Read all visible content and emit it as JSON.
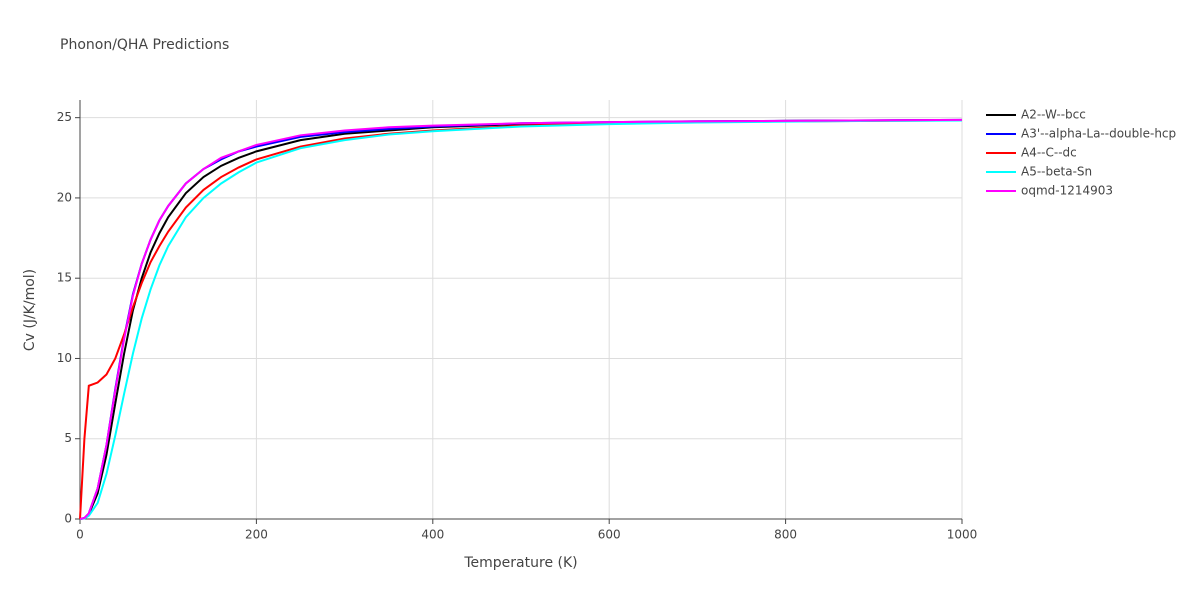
{
  "chart_data": {
    "type": "line",
    "title": "Phonon/QHA Predictions",
    "x_label": "Temperature (K)",
    "y_label": "Cv (J/K/mol)",
    "x": [
      0,
      5,
      10,
      20,
      30,
      40,
      50,
      60,
      70,
      80,
      90,
      100,
      120,
      140,
      160,
      180,
      200,
      250,
      300,
      350,
      400,
      500,
      600,
      700,
      800,
      900,
      1000
    ],
    "series": [
      {
        "name": "A2--W--bcc",
        "color": "#000000",
        "values": [
          0,
          0.05,
          0.3,
          1.6,
          4.0,
          7.2,
          10.3,
          13.0,
          15.0,
          16.6,
          17.8,
          18.8,
          20.3,
          21.3,
          22.0,
          22.5,
          22.9,
          23.6,
          24.0,
          24.2,
          24.4,
          24.6,
          24.7,
          24.75,
          24.8,
          24.82,
          24.85
        ]
      },
      {
        "name": "A3'--alpha-La--double-hcp",
        "color": "#0000ff",
        "values": [
          0,
          0.06,
          0.35,
          1.9,
          4.6,
          8.1,
          11.3,
          14.0,
          15.9,
          17.4,
          18.6,
          19.5,
          20.9,
          21.8,
          22.4,
          22.9,
          23.2,
          23.8,
          24.1,
          24.3,
          24.45,
          24.65,
          24.72,
          24.78,
          24.8,
          24.83,
          24.86
        ]
      },
      {
        "name": "A4--C--dc",
        "color": "#ff0000",
        "values": [
          0,
          5.0,
          8.3,
          8.5,
          9.0,
          10.0,
          11.5,
          13.2,
          14.7,
          16.0,
          17.0,
          17.9,
          19.4,
          20.5,
          21.3,
          21.9,
          22.4,
          23.2,
          23.7,
          24.0,
          24.2,
          24.5,
          24.65,
          24.72,
          24.77,
          24.8,
          24.83
        ]
      },
      {
        "name": "A5--beta-Sn",
        "color": "#00ffff",
        "values": [
          0,
          0.03,
          0.2,
          1.0,
          2.8,
          5.2,
          7.8,
          10.3,
          12.5,
          14.3,
          15.8,
          17.0,
          18.8,
          20.0,
          20.9,
          21.6,
          22.2,
          23.1,
          23.6,
          23.95,
          24.15,
          24.45,
          24.6,
          24.7,
          24.75,
          24.8,
          24.82
        ]
      },
      {
        "name": "oqmd-1214903",
        "color": "#ff00ff",
        "values": [
          0,
          0.06,
          0.35,
          1.9,
          4.6,
          8.0,
          11.2,
          13.9,
          15.9,
          17.4,
          18.6,
          19.5,
          20.9,
          21.8,
          22.5,
          22.9,
          23.3,
          23.9,
          24.2,
          24.4,
          24.5,
          24.65,
          24.72,
          24.77,
          24.8,
          24.83,
          24.86
        ]
      }
    ],
    "xlim": [
      0,
      1000
    ],
    "xticks": [
      0,
      200,
      400,
      600,
      800,
      1000
    ],
    "ylim": [
      0,
      26.1
    ],
    "yticks": [
      0,
      5,
      10,
      15,
      20,
      25
    ],
    "grid": true,
    "legend": "right"
  }
}
